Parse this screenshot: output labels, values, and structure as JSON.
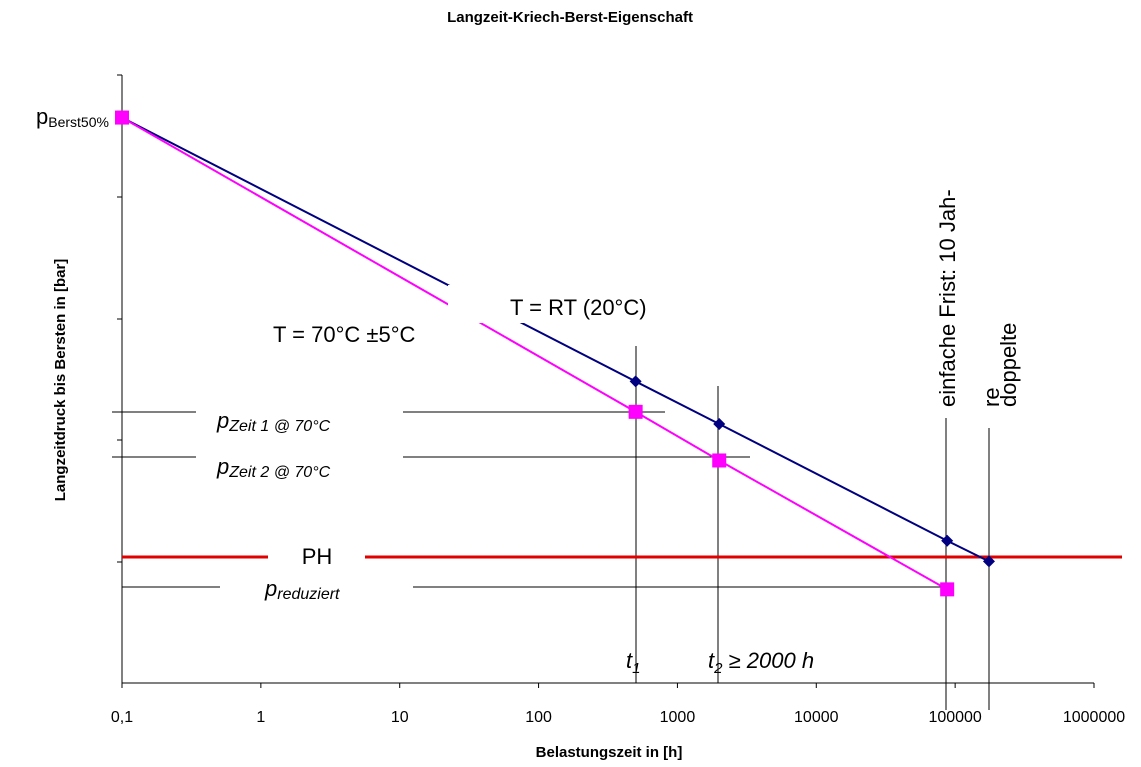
{
  "chart_data": {
    "type": "line",
    "title": "Langzeit-Kriech-Berst-Eigenschaft",
    "xlabel": "Belastungszeit in [h]",
    "ylabel": "Langzeitdruck bis Bersten in [bar]",
    "x_scale": "log",
    "xlim": [
      0.1,
      1000000
    ],
    "x_ticks": [
      "0,1",
      "1",
      "10",
      "100",
      "1000",
      "10000",
      "100000",
      "1000000"
    ],
    "ylim": [
      0,
      5
    ],
    "grid": false,
    "legend": "none",
    "series": [
      {
        "name": "T = RT (20°C)",
        "color": "#000080",
        "x": [
          0.1,
          500,
          2000,
          87600,
          175200
        ],
        "y": [
          4.65,
          2.48,
          2.13,
          1.17,
          1.0
        ]
      },
      {
        "name": "T = 70°C ±5°C",
        "color": "#ff00ff",
        "x": [
          0.1,
          500,
          2000,
          87600
        ],
        "y": [
          4.65,
          2.23,
          1.83,
          0.77
        ]
      }
    ],
    "reference_line": {
      "label": "PH",
      "y": 1.03,
      "color": "#e00000"
    },
    "annotations": {
      "y_top": {
        "p": "p",
        "sub": "Berst50%"
      },
      "p_zeit1": {
        "p": "p",
        "sub": "Zeit 1 @ 70°C"
      },
      "p_zeit2": {
        "p": "p",
        "sub": "Zeit 2 @ 70°C"
      },
      "p_red": {
        "p": "p",
        "sub": "reduziert"
      },
      "t1": {
        "t": "t",
        "sub": "1"
      },
      "t2": {
        "t": "t",
        "sub": "2",
        "rest": " ≥ 2000 h"
      },
      "einfache": "einfache Frist: 10 Jah-",
      "einfache_cont": "re",
      "doppelte": "doppelte"
    }
  }
}
